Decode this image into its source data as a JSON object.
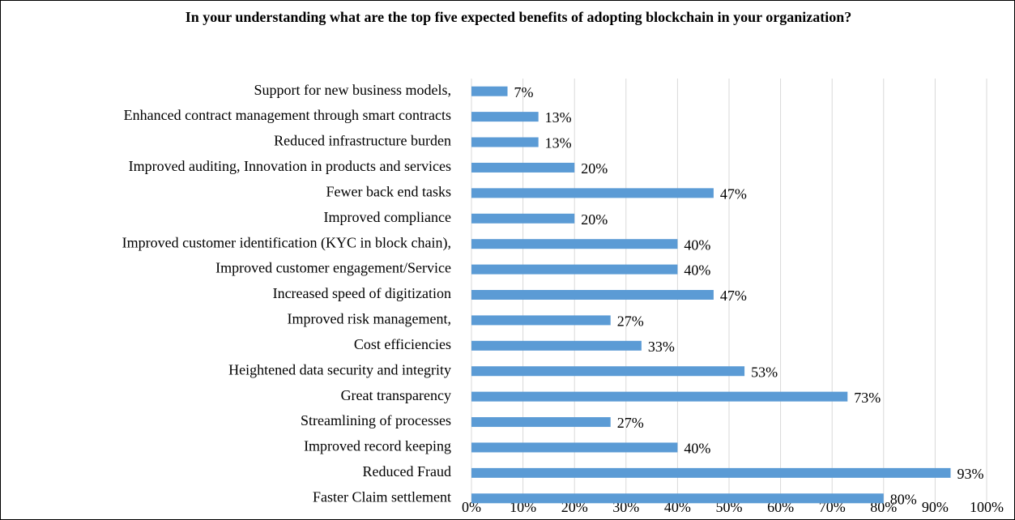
{
  "chart_data": {
    "type": "bar",
    "orientation": "horizontal",
    "title": "In your understanding what are the top five expected benefits of adopting blockchain in your organization?",
    "categories": [
      "Support for new business models,",
      "Enhanced contract management through smart contracts",
      "Reduced infrastructure  burden",
      "Improved auditing, Innovation in products and services",
      "Fewer back end tasks",
      "Improved compliance",
      "Improved customer identification  (KYC in block chain),",
      "Improved customer engagement/Service",
      "Increased speed of digitization",
      "Improved risk management,",
      "Cost efficiencies",
      "Heightened data security and integrity",
      "Great transparency",
      "Streamlining of processes",
      "Improved record keeping",
      "Reduced Fraud",
      "Faster Claim  settlement"
    ],
    "values": [
      7,
      13,
      13,
      20,
      47,
      20,
      40,
      40,
      47,
      27,
      33,
      53,
      73,
      27,
      40,
      93,
      80
    ],
    "value_labels": [
      "7%",
      "13%",
      "13%",
      "20%",
      "47%",
      "20%",
      "40%",
      "40%",
      "47%",
      "27%",
      "33%",
      "53%",
      "73%",
      "27%",
      "40%",
      "93%",
      "80%"
    ],
    "color": "#5b9bd5",
    "xlim": [
      0,
      100
    ],
    "xticks": [
      {
        "value": 0,
        "label": "0%"
      },
      {
        "value": 10,
        "label": "10%"
      },
      {
        "value": 20,
        "label": "20%"
      },
      {
        "value": 30,
        "label": "30%"
      },
      {
        "value": 40,
        "label": "40%"
      },
      {
        "value": 50,
        "label": "50%"
      },
      {
        "value": 60,
        "label": "60%"
      },
      {
        "value": 70,
        "label": "70%"
      },
      {
        "value": 80,
        "label": "80%"
      },
      {
        "value": 90,
        "label": "90%"
      },
      {
        "value": 100,
        "label": "100%"
      }
    ],
    "grid": true
  }
}
